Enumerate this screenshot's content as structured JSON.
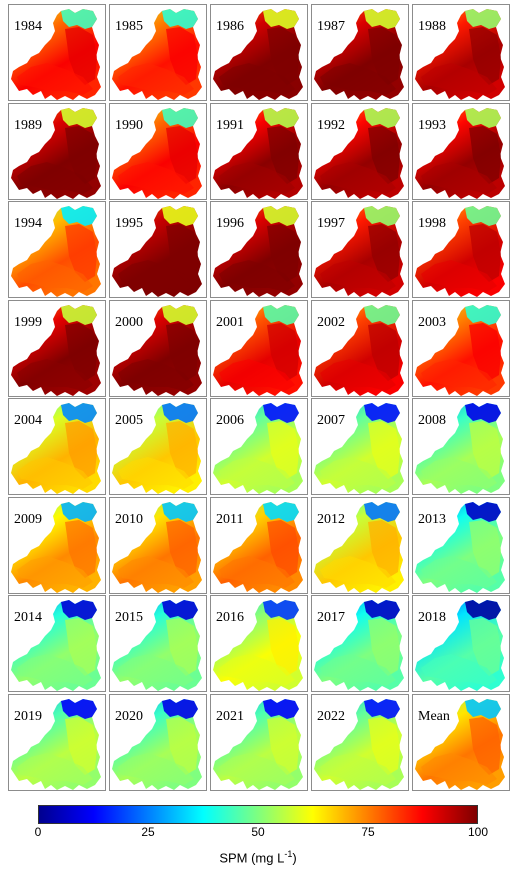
{
  "panels": [
    {
      "label": "1984",
      "level": 0.82
    },
    {
      "label": "1985",
      "level": 0.8
    },
    {
      "label": "1986",
      "level": 0.97
    },
    {
      "label": "1987",
      "level": 0.96
    },
    {
      "label": "1988",
      "level": 0.9
    },
    {
      "label": "1989",
      "level": 0.96
    },
    {
      "label": "1990",
      "level": 0.82
    },
    {
      "label": "1991",
      "level": 0.93
    },
    {
      "label": "1992",
      "level": 0.92
    },
    {
      "label": "1993",
      "level": 0.92
    },
    {
      "label": "1994",
      "level": 0.74
    },
    {
      "label": "1995",
      "level": 0.98
    },
    {
      "label": "1996",
      "level": 0.96
    },
    {
      "label": "1997",
      "level": 0.9
    },
    {
      "label": "1998",
      "level": 0.86
    },
    {
      "label": "1999",
      "level": 0.95
    },
    {
      "label": "2000",
      "level": 0.96
    },
    {
      "label": "2001",
      "level": 0.84
    },
    {
      "label": "2002",
      "level": 0.86
    },
    {
      "label": "2003",
      "level": 0.8
    },
    {
      "label": "2004",
      "level": 0.64
    },
    {
      "label": "2005",
      "level": 0.62
    },
    {
      "label": "2006",
      "level": 0.52
    },
    {
      "label": "2007",
      "level": 0.52
    },
    {
      "label": "2008",
      "level": 0.48
    },
    {
      "label": "2009",
      "level": 0.68
    },
    {
      "label": "2010",
      "level": 0.7
    },
    {
      "label": "2011",
      "level": 0.72
    },
    {
      "label": "2012",
      "level": 0.62
    },
    {
      "label": "2013",
      "level": 0.44
    },
    {
      "label": "2014",
      "level": 0.46
    },
    {
      "label": "2015",
      "level": 0.46
    },
    {
      "label": "2016",
      "level": 0.56
    },
    {
      "label": "2017",
      "level": 0.44
    },
    {
      "label": "2018",
      "level": 0.4
    },
    {
      "label": "2019",
      "level": 0.5
    },
    {
      "label": "2020",
      "level": 0.48
    },
    {
      "label": "2021",
      "level": 0.5
    },
    {
      "label": "2022",
      "level": 0.52
    },
    {
      "label": "Mean",
      "level": 0.7
    }
  ],
  "colorbar": {
    "ticks": [
      "0",
      "25",
      "50",
      "75",
      "100"
    ],
    "label": "SPM (mg L",
    "label_sup": "-1",
    "label_end": ")"
  },
  "colors": {
    "jet": [
      "#00008f",
      "#0000ff",
      "#007fff",
      "#00ffff",
      "#7fff7f",
      "#ffff00",
      "#ff7f00",
      "#ff0000",
      "#7f0000"
    ]
  }
}
